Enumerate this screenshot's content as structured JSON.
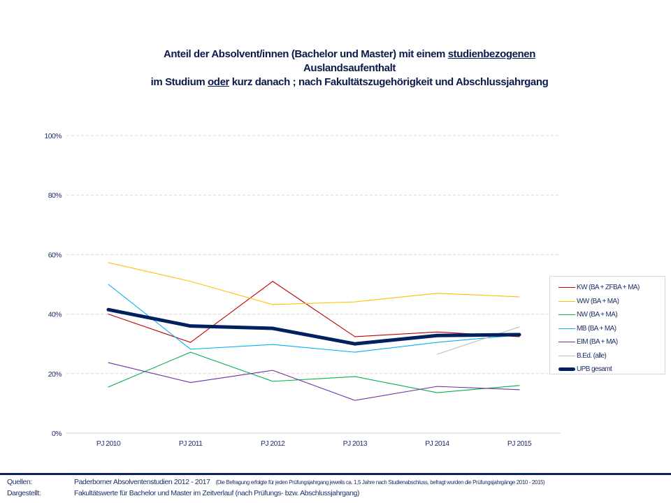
{
  "title": {
    "line1_pre": "Anteil der Absolvent/innen (Bachelor und Master) mit einem ",
    "line1_underlined": "studienbezogenen",
    "line2": "Auslandsaufenthalt",
    "line3_pre": "im Studium ",
    "line3_underlined": "oder",
    "line3_post": " kurz danach ; nach Fakultätszugehörigkeit und Abschlussjahrgang"
  },
  "chart_data": {
    "type": "line",
    "title": "Anteil der Absolvent/innen (Bachelor und Master) mit einem studienbezogenen Auslandsaufenthalt im Studium oder kurz danach ; nach Fakultätszugehörigkeit und Abschlussjahrgang",
    "xlabel": "",
    "ylabel": "",
    "categories": [
      "PJ 2010",
      "PJ 2011",
      "PJ 2012",
      "PJ 2013",
      "PJ 2014",
      "PJ 2015"
    ],
    "yticks": [
      "0%",
      "20%",
      "40%",
      "60%",
      "80%",
      "100%"
    ],
    "ylim": [
      0,
      100
    ],
    "grid": true,
    "legend_position": "right",
    "series": [
      {
        "name": "KW (BA + ZFBA + MA)",
        "color": "#c00000",
        "width": "thin",
        "values": [
          40.0,
          30.5,
          51.0,
          32.4,
          34.0,
          32.4
        ]
      },
      {
        "name": "WW (BA + MA)",
        "color": "#ffc000",
        "width": "thin",
        "values": [
          57.3,
          51.0,
          43.2,
          44.1,
          47.0,
          45.8
        ]
      },
      {
        "name": "NW (BA + MA)",
        "color": "#00b050",
        "width": "thin",
        "values": [
          15.5,
          27.2,
          17.4,
          19.0,
          13.6,
          16.0
        ]
      },
      {
        "name": "MB (BA + MA)",
        "color": "#00b0f0",
        "width": "thin",
        "values": [
          50.0,
          28.2,
          29.8,
          27.2,
          30.5,
          33.0
        ]
      },
      {
        "name": "EIM (BA + MA)",
        "color": "#7030a0",
        "width": "thin",
        "values": [
          23.7,
          17.0,
          21.1,
          11.0,
          15.7,
          14.6
        ]
      },
      {
        "name": "B.Ed. (alle)",
        "color": "#bfbfbf",
        "width": "thin",
        "values": [
          null,
          null,
          null,
          null,
          26.5,
          35.7
        ]
      },
      {
        "name": "UPB gesamt",
        "color": "#002060",
        "width": "thick",
        "values": [
          41.5,
          36.0,
          35.2,
          30.0,
          32.8,
          33.1
        ]
      }
    ]
  },
  "footer": {
    "sources_label": "Quellen:",
    "sources_text": "Paderborner Absolventenstudien  2012 - 2017",
    "sources_note": "(Die Befragung erfolgte für jeden Prüfungsjahrgang jeweils ca. 1,5 Jahre nach Studienabschluss, befragt wurden die Prüfungsjahrgänge 2010 - 2015)",
    "shown_label": "Dargestellt:",
    "shown_text": "Fakultätswerte  für Bachelor und Master im Zeitverlauf (nach Prüfungs-  bzw. Abschlussjahrgang)"
  }
}
